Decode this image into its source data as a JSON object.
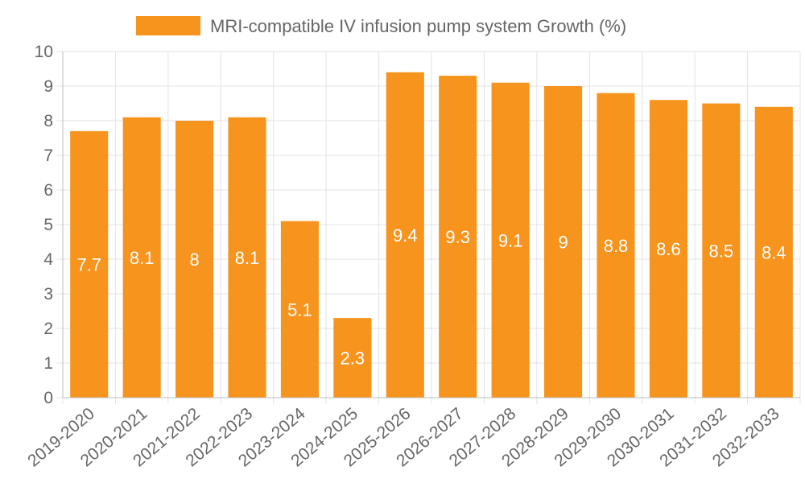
{
  "chart_data": {
    "type": "bar",
    "title": "",
    "xlabel": "",
    "ylabel": "",
    "legend": {
      "position": "top-center",
      "label": "MRI-compatible IV infusion pump system Growth (%)"
    },
    "categories": [
      "2019-2020",
      "2020-2021",
      "2021-2022",
      "2022-2023",
      "2023-2024",
      "2024-2025",
      "2025-2026",
      "2026-2027",
      "2027-2028",
      "2028-2029",
      "2029-2030",
      "2030-2031",
      "2031-2032",
      "2032-2033"
    ],
    "series": [
      {
        "name": "MRI-compatible IV infusion pump system Growth (%)",
        "values": [
          7.7,
          8.1,
          8,
          8.1,
          5.1,
          2.3,
          9.4,
          9.3,
          9.1,
          9,
          8.8,
          8.6,
          8.5,
          8.4
        ],
        "color": "#f7941d"
      }
    ],
    "ylim": [
      0,
      10
    ],
    "yticks": [
      0,
      1,
      2,
      3,
      4,
      5,
      6,
      7,
      8,
      9,
      10
    ],
    "grid": true,
    "x_tick_rotation_deg": -40
  }
}
